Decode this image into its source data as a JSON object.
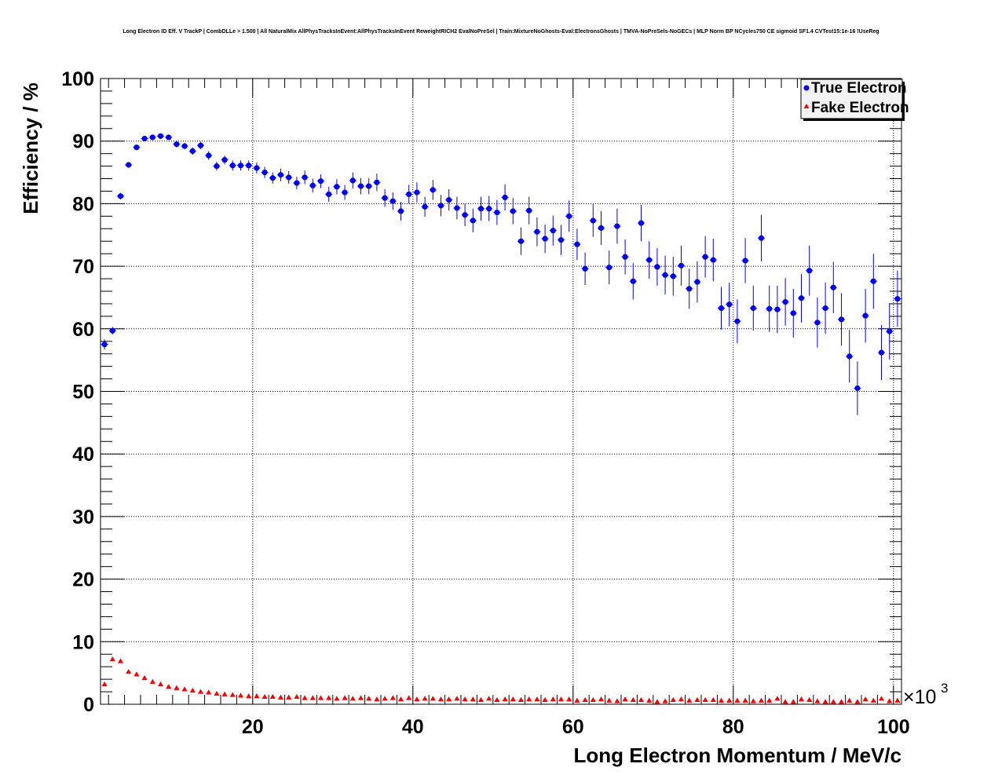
{
  "chart_data": {
    "type": "scatter",
    "title": "Long Electron ID Eff. V TrackP | CombDLLe > 1.500 | All NaturalMix AllPhysTracksInEvent:AllPhysTracksInEvent ReweightRICH2 EvalNoPreSel | Train:MixtureNoGhosts-Eval:ElectronsGhosts | TMVA-NoPreSels-NoGECs | MLP Norm BP NCycles750 CE sigmoid SF1.4 CVTest15:1e-16 !UseReg",
    "xlabel": "Long Electron Momentum / MeV/c",
    "ylabel": "Efficiency / %",
    "x_multiplier_base": "×10",
    "x_multiplier_exp": "3",
    "xlim": [
      1,
      101
    ],
    "ylim": [
      0,
      100
    ],
    "x_ticks": [
      20,
      40,
      60,
      80,
      100
    ],
    "y_ticks": [
      0,
      10,
      20,
      30,
      40,
      50,
      60,
      70,
      80,
      90,
      100
    ],
    "grid": true,
    "legend_position": "top-right",
    "series": [
      {
        "name": "True Electron",
        "color": "#0000ff",
        "marker": "circle",
        "x": [
          1.5,
          2.5,
          3.5,
          4.5,
          5.5,
          6.5,
          7.5,
          8.5,
          9.5,
          10.5,
          11.5,
          12.5,
          13.5,
          14.5,
          15.5,
          16.5,
          17.5,
          18.5,
          19.5,
          20.5,
          21.5,
          22.5,
          23.5,
          24.5,
          25.5,
          26.5,
          27.5,
          28.5,
          29.5,
          30.5,
          31.5,
          32.5,
          33.5,
          34.5,
          35.5,
          36.5,
          37.5,
          38.5,
          39.5,
          40.5,
          41.5,
          42.5,
          43.5,
          44.5,
          45.5,
          46.5,
          47.5,
          48.5,
          49.5,
          50.5,
          51.5,
          52.5,
          53.5,
          54.5,
          55.5,
          56.5,
          57.5,
          58.5,
          59.5,
          60.5,
          61.5,
          62.5,
          63.5,
          64.5,
          65.5,
          66.5,
          67.5,
          68.5,
          69.5,
          70.5,
          71.5,
          72.5,
          73.5,
          74.5,
          75.5,
          76.5,
          77.5,
          78.5,
          79.5,
          80.5,
          81.5,
          82.5,
          83.5,
          84.5,
          85.5,
          86.5,
          87.5,
          88.5,
          89.5,
          90.5,
          91.5,
          92.5,
          93.5,
          94.5,
          95.5,
          96.5,
          97.5,
          98.5,
          99.5,
          100.5
        ],
        "y": [
          57.5,
          59.7,
          81.2,
          86.2,
          89.0,
          90.4,
          90.6,
          90.8,
          90.6,
          89.5,
          89.2,
          88.4,
          89.3,
          87.7,
          86.0,
          87.0,
          86.1,
          86.1,
          86.1,
          85.7,
          85.0,
          84.1,
          84.6,
          84.2,
          83.3,
          84.2,
          82.9,
          83.6,
          81.5,
          82.7,
          81.8,
          83.7,
          82.8,
          82.8,
          83.4,
          80.9,
          80.4,
          78.8,
          81.5,
          81.8,
          79.5,
          82.2,
          79.7,
          80.6,
          79.3,
          78.2,
          77.3,
          79.2,
          79.2,
          78.6,
          81.0,
          78.8,
          74.0,
          78.9,
          75.5,
          74.4,
          75.7,
          74.2,
          78.0,
          73.5,
          69.6,
          77.3,
          76.1,
          69.8,
          76.4,
          71.5,
          67.6,
          76.9,
          71.0,
          69.9,
          68.6,
          68.4,
          70.1,
          66.4,
          67.5,
          71.5,
          71.0,
          63.3,
          63.9,
          61.2,
          70.9,
          63.3,
          74.5,
          63.2,
          63.1,
          64.3,
          62.5,
          64.9,
          69.3,
          61.0,
          63.3,
          66.6,
          61.5,
          55.6,
          50.5,
          62.1,
          67.6,
          56.2,
          59.6,
          64.8
        ],
        "yerr": [
          0.8,
          0.6,
          0.5,
          0.4,
          0.4,
          0.4,
          0.4,
          0.4,
          0.4,
          0.5,
          0.5,
          0.6,
          0.6,
          0.7,
          0.7,
          0.7,
          0.8,
          0.8,
          0.8,
          0.9,
          0.9,
          0.9,
          1.0,
          1.0,
          1.0,
          1.1,
          1.1,
          1.1,
          1.2,
          1.2,
          1.2,
          1.3,
          1.3,
          1.3,
          1.4,
          1.4,
          1.4,
          1.5,
          1.5,
          1.6,
          1.6,
          1.6,
          1.7,
          1.7,
          1.8,
          1.8,
          1.9,
          1.9,
          2.0,
          2.0,
          2.1,
          2.1,
          2.2,
          2.2,
          2.3,
          2.3,
          2.4,
          2.4,
          2.5,
          2.5,
          2.6,
          2.6,
          2.7,
          2.7,
          2.8,
          2.8,
          2.9,
          2.9,
          3.0,
          3.0,
          3.1,
          3.1,
          3.2,
          3.2,
          3.3,
          3.3,
          3.4,
          3.4,
          3.5,
          3.5,
          3.6,
          3.6,
          3.7,
          3.7,
          3.8,
          3.8,
          3.9,
          3.9,
          4.0,
          4.0,
          4.1,
          4.1,
          4.2,
          4.2,
          4.3,
          4.3,
          4.4,
          4.4,
          4.5,
          4.5
        ]
      },
      {
        "name": "Fake Electron",
        "color": "#ff0000",
        "marker": "triangle",
        "x": [
          1.5,
          2.5,
          3.5,
          4.5,
          5.5,
          6.5,
          7.5,
          8.5,
          9.5,
          10.5,
          11.5,
          12.5,
          13.5,
          14.5,
          15.5,
          16.5,
          17.5,
          18.5,
          19.5,
          20.5,
          21.5,
          22.5,
          23.5,
          24.5,
          25.5,
          26.5,
          27.5,
          28.5,
          29.5,
          30.5,
          31.5,
          32.5,
          33.5,
          34.5,
          35.5,
          36.5,
          37.5,
          38.5,
          39.5,
          40.5,
          41.5,
          42.5,
          43.5,
          44.5,
          45.5,
          46.5,
          47.5,
          48.5,
          49.5,
          50.5,
          51.5,
          52.5,
          53.5,
          54.5,
          55.5,
          56.5,
          57.5,
          58.5,
          59.5,
          60.5,
          61.5,
          62.5,
          63.5,
          64.5,
          65.5,
          66.5,
          67.5,
          68.5,
          69.5,
          70.5,
          71.5,
          72.5,
          73.5,
          74.5,
          75.5,
          76.5,
          77.5,
          78.5,
          79.5,
          80.5,
          81.5,
          82.5,
          83.5,
          84.5,
          85.5,
          86.5,
          87.5,
          88.5,
          89.5,
          90.5,
          91.5,
          92.5,
          93.5,
          94.5,
          95.5,
          96.5,
          97.5,
          98.5,
          99.5,
          100.5
        ],
        "y": [
          3.2,
          7.2,
          6.9,
          5.2,
          4.8,
          4.2,
          3.6,
          3.2,
          2.8,
          2.6,
          2.4,
          2.2,
          2.0,
          1.9,
          1.7,
          1.6,
          1.5,
          1.4,
          1.3,
          1.3,
          1.2,
          1.2,
          1.1,
          1.1,
          1.2,
          1.0,
          1.0,
          1.0,
          1.0,
          0.9,
          1.0,
          0.9,
          1.0,
          0.9,
          0.8,
          0.9,
          1.0,
          0.8,
          1.0,
          0.8,
          0.9,
          0.9,
          0.8,
          0.8,
          0.9,
          0.8,
          0.8,
          0.7,
          0.9,
          0.7,
          0.8,
          0.8,
          0.7,
          0.8,
          0.8,
          0.7,
          0.8,
          0.8,
          0.8,
          0.6,
          0.7,
          0.7,
          0.8,
          0.6,
          0.5,
          0.8,
          0.7,
          0.7,
          0.6,
          0.4,
          0.5,
          0.7,
          0.8,
          0.6,
          0.7,
          0.7,
          0.7,
          0.6,
          0.6,
          0.6,
          0.6,
          0.5,
          0.6,
          0.6,
          0.9,
          0.4,
          0.4,
          0.8,
          0.7,
          0.5,
          0.4,
          0.4,
          0.4,
          0.6,
          0.4,
          0.8,
          0.6,
          0.9,
          0.5,
          0.6
        ]
      }
    ]
  }
}
